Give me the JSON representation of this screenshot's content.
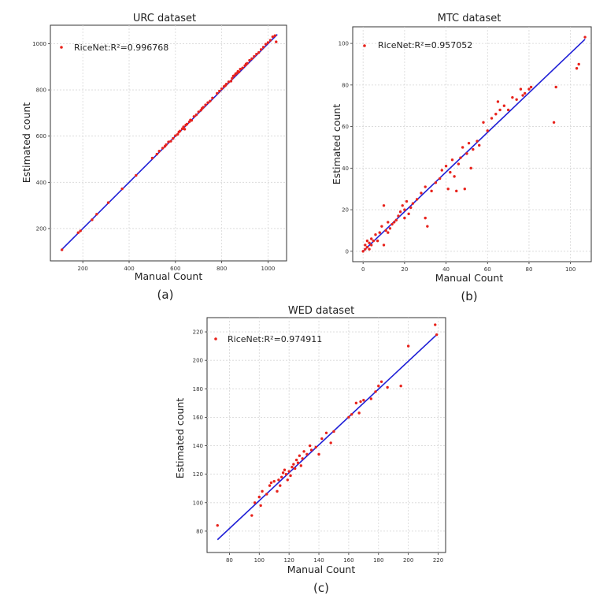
{
  "chart_data": [
    {
      "type": "scatter",
      "title": "URC dataset",
      "xlabel": "Manual Count",
      "ylabel": "Estimated count",
      "panel_label": "(a)",
      "xlim": [
        60,
        1080
      ],
      "ylim": [
        60,
        1080
      ],
      "xticks": [
        200,
        400,
        600,
        800,
        1000
      ],
      "yticks": [
        200,
        400,
        600,
        800,
        1000
      ],
      "grid": true,
      "legend_position": "top-left",
      "series": [
        {
          "name": "RiceNet:R²=0.996768",
          "color": "#e8231c",
          "points": [
            [
              110,
              108
            ],
            [
              180,
              182
            ],
            [
              190,
              190
            ],
            [
              240,
              238
            ],
            [
              260,
              262
            ],
            [
              310,
              312
            ],
            [
              370,
              372
            ],
            [
              430,
              430
            ],
            [
              500,
              505
            ],
            [
              520,
              522
            ],
            [
              530,
              535
            ],
            [
              545,
              548
            ],
            [
              555,
              556
            ],
            [
              560,
              563
            ],
            [
              570,
              575
            ],
            [
              580,
              578
            ],
            [
              590,
              590
            ],
            [
              600,
              602
            ],
            [
              610,
              608
            ],
            [
              615,
              618
            ],
            [
              620,
              622
            ],
            [
              630,
              632
            ],
            [
              635,
              640
            ],
            [
              640,
              630
            ],
            [
              645,
              648
            ],
            [
              650,
              652
            ],
            [
              660,
              662
            ],
            [
              665,
              670
            ],
            [
              670,
              668
            ],
            [
              680,
              685
            ],
            [
              690,
              692
            ],
            [
              700,
              705
            ],
            [
              710,
              712
            ],
            [
              715,
              720
            ],
            [
              720,
              725
            ],
            [
              730,
              735
            ],
            [
              740,
              745
            ],
            [
              750,
              752
            ],
            [
              760,
              765
            ],
            [
              780,
              785
            ],
            [
              790,
              795
            ],
            [
              800,
              805
            ],
            [
              810,
              815
            ],
            [
              815,
              818
            ],
            [
              820,
              825
            ],
            [
              830,
              835
            ],
            [
              840,
              838
            ],
            [
              845,
              850
            ],
            [
              850,
              860
            ],
            [
              855,
              862
            ],
            [
              860,
              870
            ],
            [
              865,
              872
            ],
            [
              870,
              880
            ],
            [
              875,
              878
            ],
            [
              880,
              890
            ],
            [
              890,
              895
            ],
            [
              900,
              905
            ],
            [
              905,
              912
            ],
            [
              910,
              915
            ],
            [
              920,
              928
            ],
            [
              930,
              935
            ],
            [
              940,
              945
            ],
            [
              950,
              955
            ],
            [
              960,
              962
            ],
            [
              970,
              975
            ],
            [
              980,
              985
            ],
            [
              990,
              998
            ],
            [
              1000,
              1005
            ],
            [
              1010,
              1015
            ],
            [
              1020,
              1030
            ],
            [
              1030,
              1035
            ],
            [
              1035,
              1008
            ]
          ]
        }
      ],
      "fit_line": {
        "color": "#1f1fd6",
        "x": [
          105,
          1040
        ],
        "y": [
          105,
          1040
        ]
      }
    },
    {
      "type": "scatter",
      "title": "MTC dataset",
      "xlabel": "Manual Count",
      "ylabel": "Estimated count",
      "panel_label": "(b)",
      "xlim": [
        -5,
        110
      ],
      "ylim": [
        -5,
        108
      ],
      "xticks": [
        0,
        20,
        40,
        60,
        80,
        100
      ],
      "yticks": [
        0,
        20,
        40,
        60,
        80,
        100
      ],
      "grid": true,
      "legend_position": "top-left",
      "series": [
        {
          "name": "RiceNet:R²=0.957052",
          "color": "#e8231c",
          "points": [
            [
              0,
              0
            ],
            [
              1,
              1
            ],
            [
              1,
              3
            ],
            [
              2,
              2
            ],
            [
              2,
              5
            ],
            [
              3,
              1
            ],
            [
              3,
              4
            ],
            [
              4,
              3
            ],
            [
              4,
              6
            ],
            [
              5,
              5
            ],
            [
              6,
              8
            ],
            [
              7,
              5
            ],
            [
              8,
              9
            ],
            [
              9,
              12
            ],
            [
              10,
              3
            ],
            [
              10,
              22
            ],
            [
              11,
              10
            ],
            [
              12,
              9
            ],
            [
              12,
              14
            ],
            [
              13,
              11
            ],
            [
              14,
              13
            ],
            [
              15,
              14
            ],
            [
              16,
              15
            ],
            [
              17,
              17
            ],
            [
              18,
              19
            ],
            [
              19,
              22
            ],
            [
              20,
              16
            ],
            [
              20,
              20
            ],
            [
              21,
              24
            ],
            [
              22,
              18
            ],
            [
              23,
              21
            ],
            [
              24,
              23
            ],
            [
              26,
              25
            ],
            [
              28,
              28
            ],
            [
              30,
              16
            ],
            [
              30,
              31
            ],
            [
              31,
              12
            ],
            [
              33,
              29
            ],
            [
              35,
              33
            ],
            [
              37,
              35
            ],
            [
              38,
              39
            ],
            [
              40,
              41
            ],
            [
              41,
              30
            ],
            [
              42,
              38
            ],
            [
              43,
              44
            ],
            [
              44,
              36
            ],
            [
              45,
              29
            ],
            [
              46,
              42
            ],
            [
              47,
              45
            ],
            [
              48,
              50
            ],
            [
              49,
              30
            ],
            [
              50,
              47
            ],
            [
              51,
              52
            ],
            [
              52,
              40
            ],
            [
              53,
              49
            ],
            [
              55,
              53
            ],
            [
              56,
              51
            ],
            [
              58,
              62
            ],
            [
              60,
              58
            ],
            [
              62,
              64
            ],
            [
              64,
              66
            ],
            [
              65,
              72
            ],
            [
              66,
              68
            ],
            [
              68,
              70
            ],
            [
              70,
              68
            ],
            [
              72,
              74
            ],
            [
              74,
              73
            ],
            [
              76,
              78
            ],
            [
              77,
              75
            ],
            [
              78,
              76
            ],
            [
              80,
              78
            ],
            [
              81,
              79
            ],
            [
              92,
              62
            ],
            [
              93,
              79
            ],
            [
              103,
              88
            ],
            [
              104,
              90
            ],
            [
              107,
              103
            ]
          ]
        }
      ],
      "fit_line": {
        "color": "#1f1fd6",
        "x": [
          0,
          107
        ],
        "y": [
          0,
          102
        ]
      }
    },
    {
      "type": "scatter",
      "title": "WED dataset",
      "xlabel": "Manual Count",
      "ylabel": "Estimated count",
      "panel_label": "(c)",
      "xlim": [
        65,
        225
      ],
      "ylim": [
        65,
        230
      ],
      "xticks": [
        80,
        100,
        120,
        140,
        160,
        180,
        200,
        220
      ],
      "yticks": [
        80,
        100,
        120,
        140,
        160,
        180,
        200,
        220
      ],
      "grid": true,
      "legend_position": "top-left",
      "series": [
        {
          "name": "RiceNet:R²=0.974911",
          "color": "#e8231c",
          "points": [
            [
              72,
              84
            ],
            [
              95,
              91
            ],
            [
              97,
              100
            ],
            [
              100,
              104
            ],
            [
              101,
              98
            ],
            [
              102,
              108
            ],
            [
              105,
              106
            ],
            [
              107,
              112
            ],
            [
              108,
              114
            ],
            [
              110,
              115
            ],
            [
              112,
              108
            ],
            [
              113,
              116
            ],
            [
              114,
              112
            ],
            [
              115,
              118
            ],
            [
              116,
              121
            ],
            [
              117,
              123
            ],
            [
              118,
              120
            ],
            [
              119,
              116
            ],
            [
              120,
              122
            ],
            [
              121,
              119
            ],
            [
              122,
              125
            ],
            [
              123,
              127
            ],
            [
              124,
              124
            ],
            [
              125,
              130
            ],
            [
              126,
              128
            ],
            [
              127,
              133
            ],
            [
              128,
              126
            ],
            [
              129,
              131
            ],
            [
              130,
              136
            ],
            [
              132,
              134
            ],
            [
              134,
              140
            ],
            [
              135,
              137
            ],
            [
              138,
              139
            ],
            [
              140,
              134
            ],
            [
              142,
              145
            ],
            [
              145,
              149
            ],
            [
              148,
              142
            ],
            [
              150,
              150
            ],
            [
              160,
              160
            ],
            [
              162,
              162
            ],
            [
              165,
              170
            ],
            [
              167,
              163
            ],
            [
              168,
              171
            ],
            [
              170,
              172
            ],
            [
              175,
              173
            ],
            [
              178,
              178
            ],
            [
              180,
              182
            ],
            [
              182,
              185
            ],
            [
              186,
              181
            ],
            [
              195,
              182
            ],
            [
              200,
              210
            ],
            [
              218,
              225
            ],
            [
              219,
              218
            ]
          ]
        }
      ],
      "fit_line": {
        "color": "#1f1fd6",
        "x": [
          72,
          219
        ],
        "y": [
          74,
          218
        ]
      }
    }
  ]
}
